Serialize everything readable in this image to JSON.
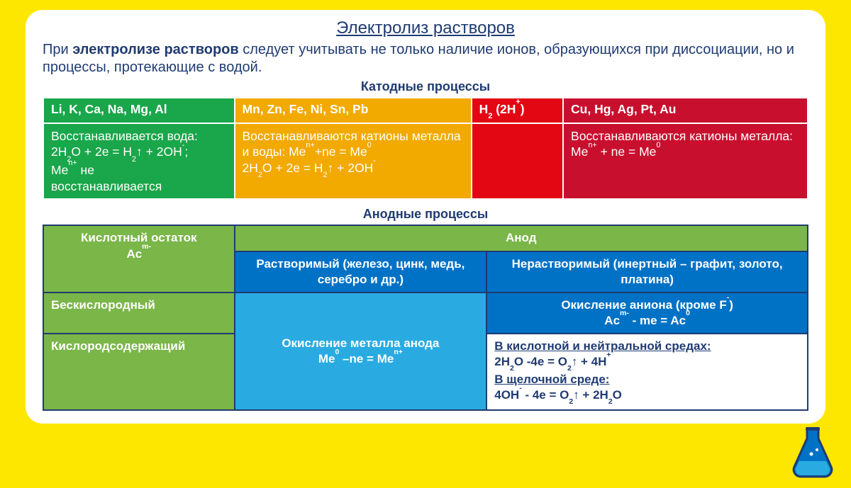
{
  "title": "Электролиз растворов",
  "intro_html": "При <b>электролизе растворов</b> следует учитывать не только наличие ионов, образующихся при диссоциации, но и процессы, протекающие с водой.",
  "cathode": {
    "title": "Катодные процессы",
    "cols_width": [
      "25%",
      "31%",
      "12%",
      "32%"
    ],
    "colors": {
      "green": "#1aa64a",
      "amber": "#f2a900",
      "red": "#e30613",
      "crimson": "#c8102e"
    },
    "headers": [
      "Li, K, Ca, Na, Mg, Al",
      "Mn, Zn, Fe, Ni, Sn, Pb",
      "H<sub>2</sub> (2H<sup>+</sup>)",
      "Cu, Hg, Ag, Pt, Au"
    ],
    "body": [
      "Восстанавливается вода:<br>2H<sub>2</sub>O + 2e = H<sub>2</sub>↑ + 2OH<sup>-</sup>;<br>Me<sup>n+</sup> не<br>восстанавливается",
      "Восстанавливаются катионы металла и воды: Me<sup>n+</sup>+ne = Me<sup>0</sup><br>2H<sub>2</sub>O + 2e = H<sub>2</sub>↑ + 2OH<sup>-</sup>",
      "",
      "Восстанавливаются катионы металла:<br>Me<sup>n+</sup> + ne = Me<sup>0</sup>"
    ]
  },
  "anode": {
    "title": "Анодные процессы",
    "colors": {
      "green": "#7ab648",
      "blue": "#0072c6",
      "cyan": "#29abe2",
      "navy": "#1f3b72",
      "white": "#ffffff"
    },
    "cols_width": [
      "25%",
      "33%",
      "42%"
    ],
    "left_header_html": "Кислотный остаток<br>Ac<sup>m-</sup>",
    "top_header": "Анод",
    "sub_headers": [
      "Растворимый (железо, цинк, медь, серебро и др.)",
      "Нерастворимый (инертный – графит, золото, платина)"
    ],
    "row_labels": [
      "Бескислородный",
      "Кислородсодержащий"
    ],
    "cells": {
      "soluble_merged_html": "Окисление металла анода<br>Me<sup>0</sup> –ne = Me<sup>n+</sup>",
      "insol_oxyfree_html": "Окисление аниона (кроме F<sup>-</sup>)<br>Ac<sup>m-</sup> - me = Ac<sup>0</sup>",
      "insol_oxygen_html": "<u>В кислотной и нейтральной средах:</u><br>2H<sub>2</sub>O -4e = O<sub>2</sub>↑ + 4H<sup>+</sup><br><u>В щелочной среде:</u><br>4OH<sup>-</sup> - 4e = O<sub>2</sub>↑ + 2H<sub>2</sub>O"
    }
  },
  "decor": {
    "flask_body": "#0072c6",
    "flask_liquid": "#29abe2",
    "flask_stroke": "#1f3b72"
  }
}
